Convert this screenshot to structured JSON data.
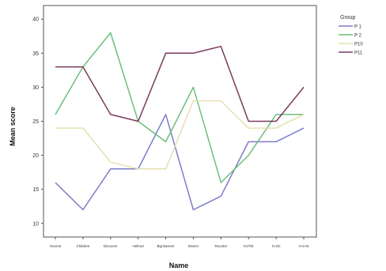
{
  "chart_data": {
    "type": "line",
    "title": "",
    "xlabel": "Name",
    "ylabel": "Mean score",
    "categories": [
      "Hourse",
      "Children",
      "Discover",
      "Helmet",
      "Big-banner",
      "Dance",
      "Rooster",
      "KOTB",
      "H-2O",
      "H-2-Ni"
    ],
    "ylim": [
      8,
      42
    ],
    "yticks": [
      10,
      15,
      20,
      25,
      30,
      35,
      40
    ],
    "grid": false,
    "legend": {
      "title": "Group",
      "position": "top-right"
    },
    "series": [
      {
        "name": "P 1",
        "color": "#7c7ccc",
        "values": [
          16,
          12,
          18,
          18,
          26,
          12,
          14,
          22,
          22,
          24
        ]
      },
      {
        "name": "P 2",
        "color": "#6cbf7a",
        "values": [
          26,
          33,
          38,
          25,
          22,
          30,
          16,
          20,
          26,
          26
        ]
      },
      {
        "name": "P10",
        "color": "#e6e0b0",
        "values": [
          24,
          24,
          19,
          18,
          18,
          28,
          28,
          24,
          24,
          26
        ]
      },
      {
        "name": "P11",
        "color": "#7a3a5e",
        "values": [
          33,
          33,
          26,
          25,
          35,
          35,
          36,
          25,
          25,
          30
        ]
      }
    ]
  }
}
